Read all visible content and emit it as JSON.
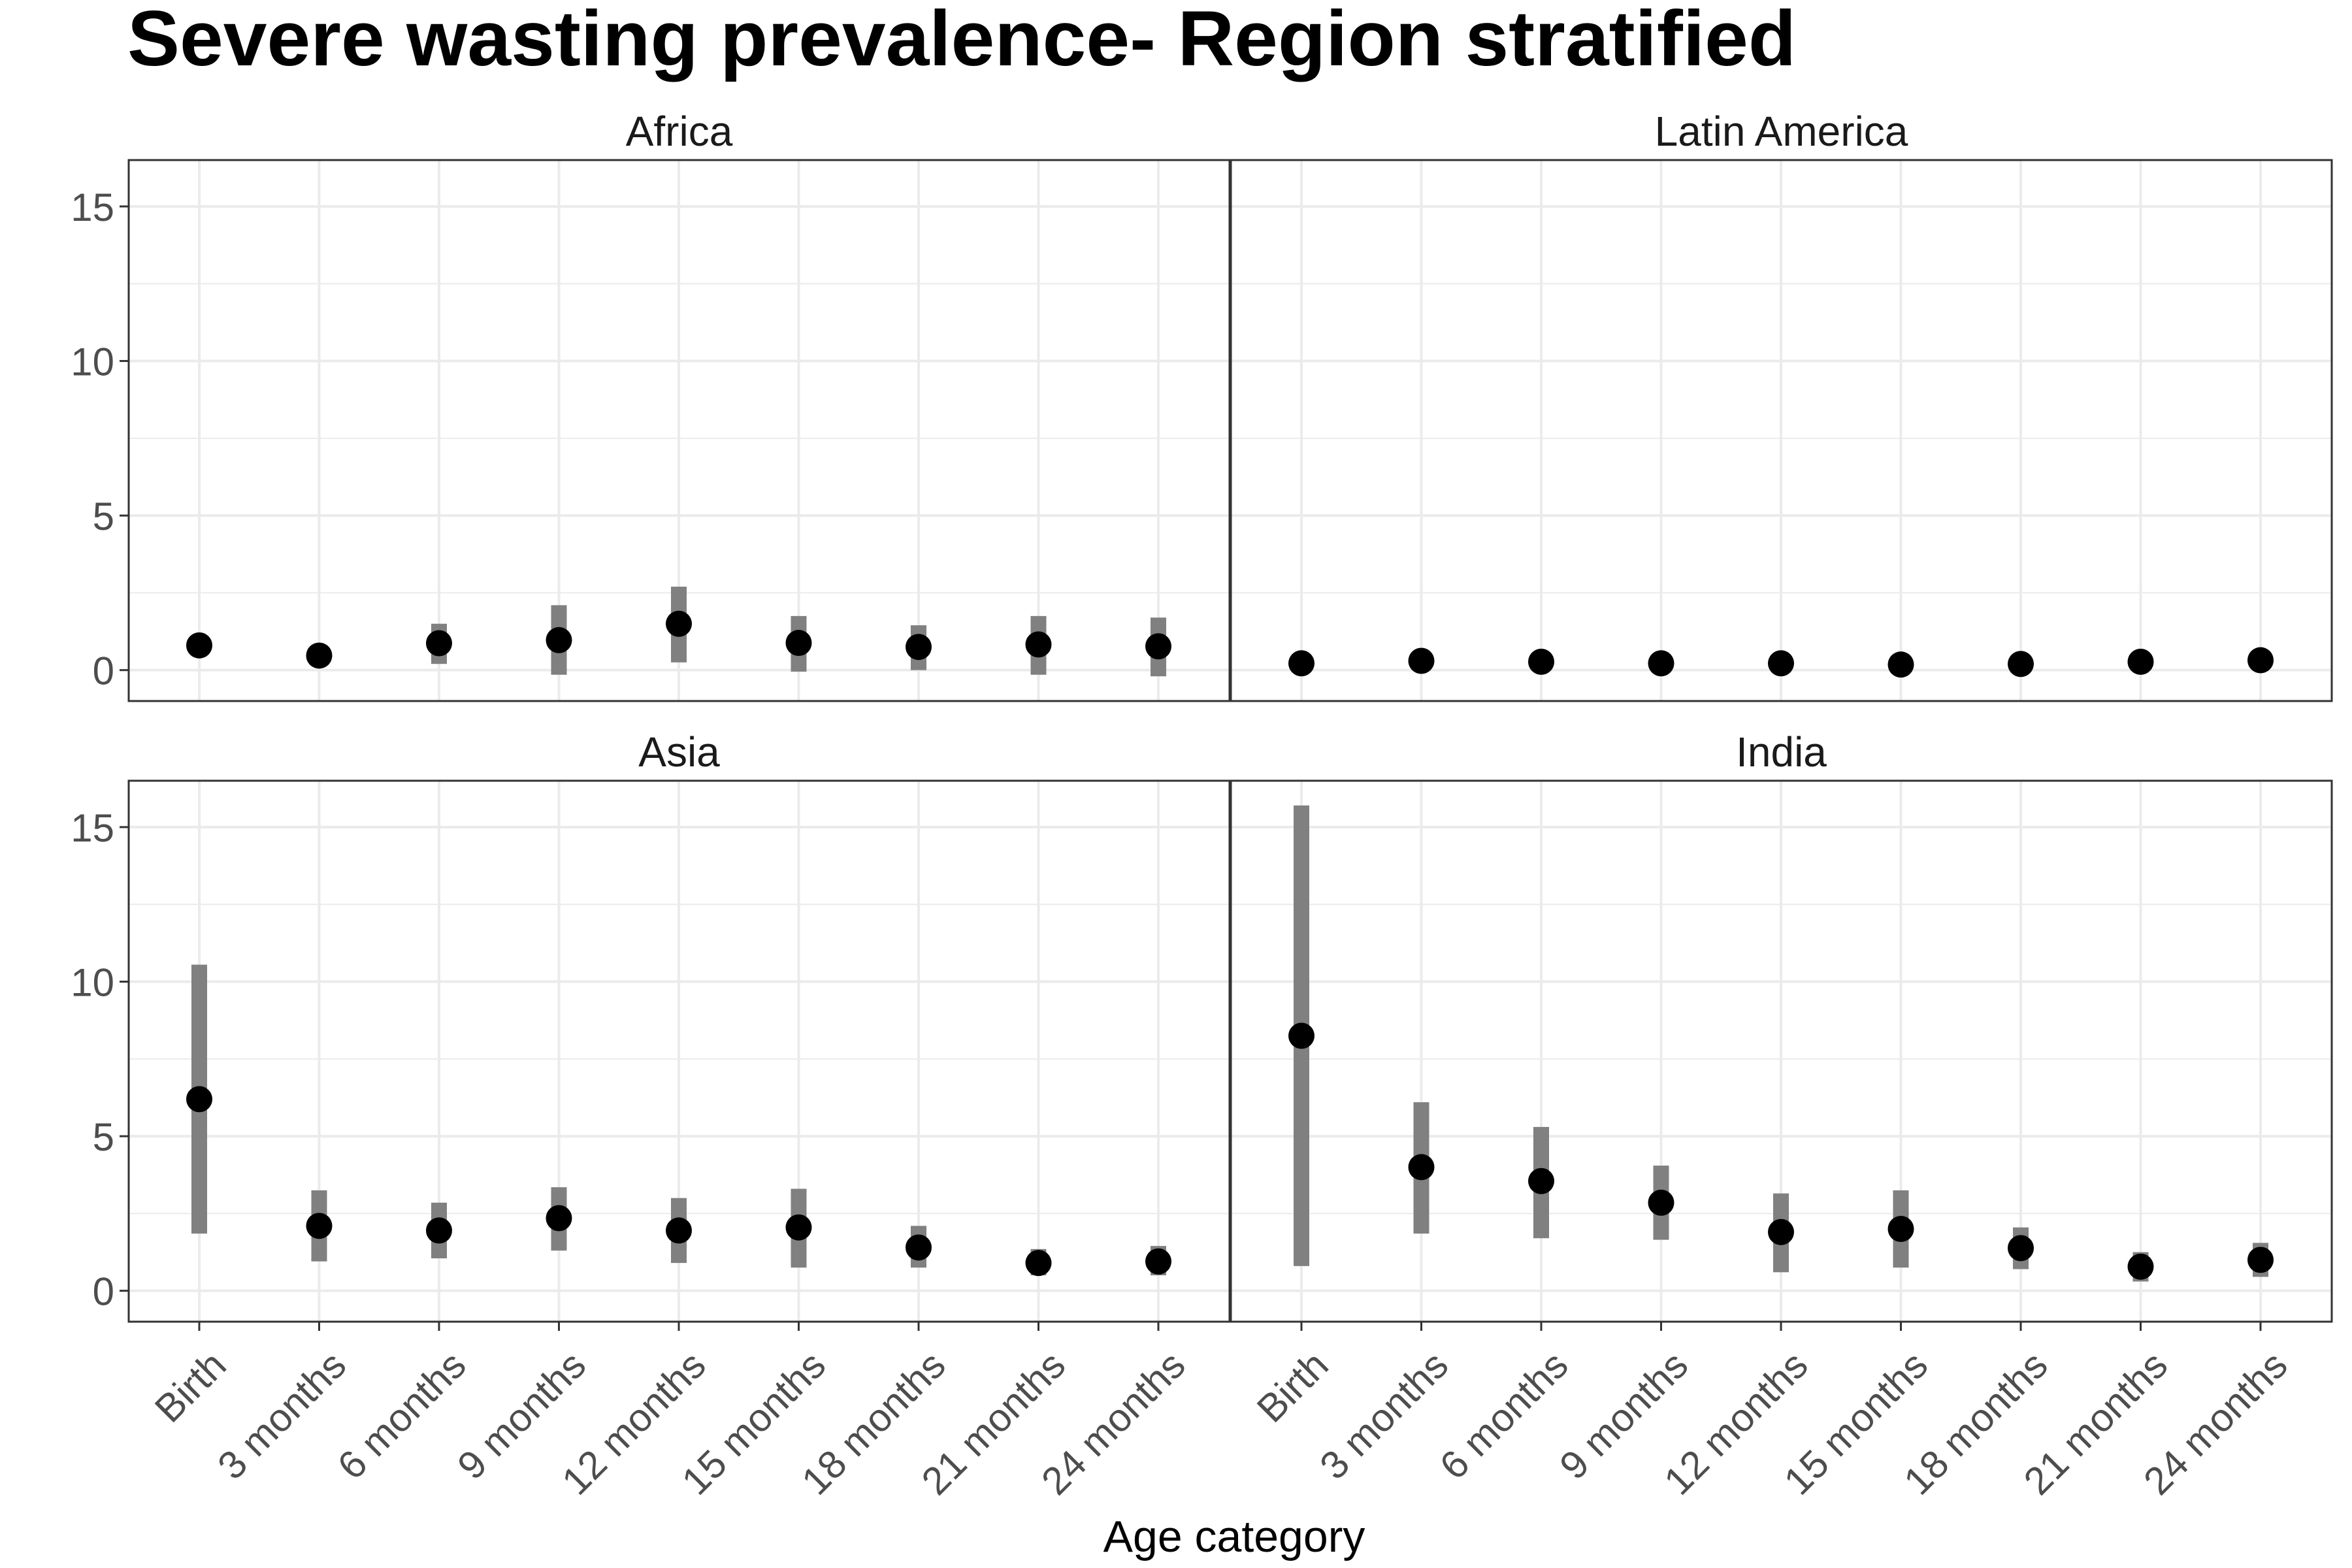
{
  "chart_data": {
    "type": "scatter",
    "title": "Severe wasting prevalence- Region stratified",
    "xlabel": "Age category",
    "ylabel": "",
    "ylim": [
      -1,
      16.5
    ],
    "yticks": [
      0,
      5,
      10,
      15
    ],
    "grid": true,
    "categories": [
      "Birth",
      "3 months",
      "6 months",
      "9 months",
      "12 months",
      "15 months",
      "18 months",
      "21 months",
      "24 months"
    ],
    "colors": {
      "point": "#000000",
      "ci": "#808080",
      "grid": "#ebebeb",
      "border": "#333333"
    },
    "panels": [
      {
        "name": "Africa",
        "series": [
          {
            "values": [
              0.8,
              0.47,
              0.87,
              0.97,
              1.5,
              0.88,
              0.75,
              0.83,
              0.77
            ],
            "lower": [
              null,
              null,
              0.2,
              -0.15,
              0.25,
              -0.05,
              0.0,
              -0.15,
              -0.2
            ],
            "upper": [
              null,
              null,
              1.5,
              2.1,
              2.7,
              1.75,
              1.45,
              1.75,
              1.7
            ]
          }
        ]
      },
      {
        "name": "Latin America",
        "series": [
          {
            "values": [
              0.22,
              0.3,
              0.27,
              0.22,
              0.22,
              0.18,
              0.2,
              0.27,
              0.32
            ],
            "lower": [
              null,
              null,
              null,
              null,
              null,
              null,
              null,
              null,
              null
            ],
            "upper": [
              null,
              null,
              null,
              null,
              null,
              null,
              null,
              null,
              null
            ]
          }
        ]
      },
      {
        "name": "Asia",
        "series": [
          {
            "values": [
              6.2,
              2.1,
              1.95,
              2.35,
              1.95,
              2.05,
              1.4,
              0.9,
              0.95
            ],
            "lower": [
              1.85,
              0.95,
              1.05,
              1.3,
              0.9,
              0.75,
              0.75,
              0.5,
              0.5
            ],
            "upper": [
              10.55,
              3.25,
              2.85,
              3.35,
              3.0,
              3.3,
              2.1,
              1.35,
              1.45
            ]
          }
        ]
      },
      {
        "name": "India",
        "series": [
          {
            "values": [
              8.25,
              4.0,
              3.55,
              2.85,
              1.9,
              2.0,
              1.38,
              0.78,
              1.0
            ],
            "lower": [
              0.8,
              1.85,
              1.7,
              1.65,
              0.6,
              0.75,
              0.7,
              0.3,
              0.45
            ],
            "upper": [
              15.7,
              6.1,
              5.3,
              4.05,
              3.15,
              3.25,
              2.05,
              1.25,
              1.55
            ]
          }
        ]
      }
    ]
  }
}
